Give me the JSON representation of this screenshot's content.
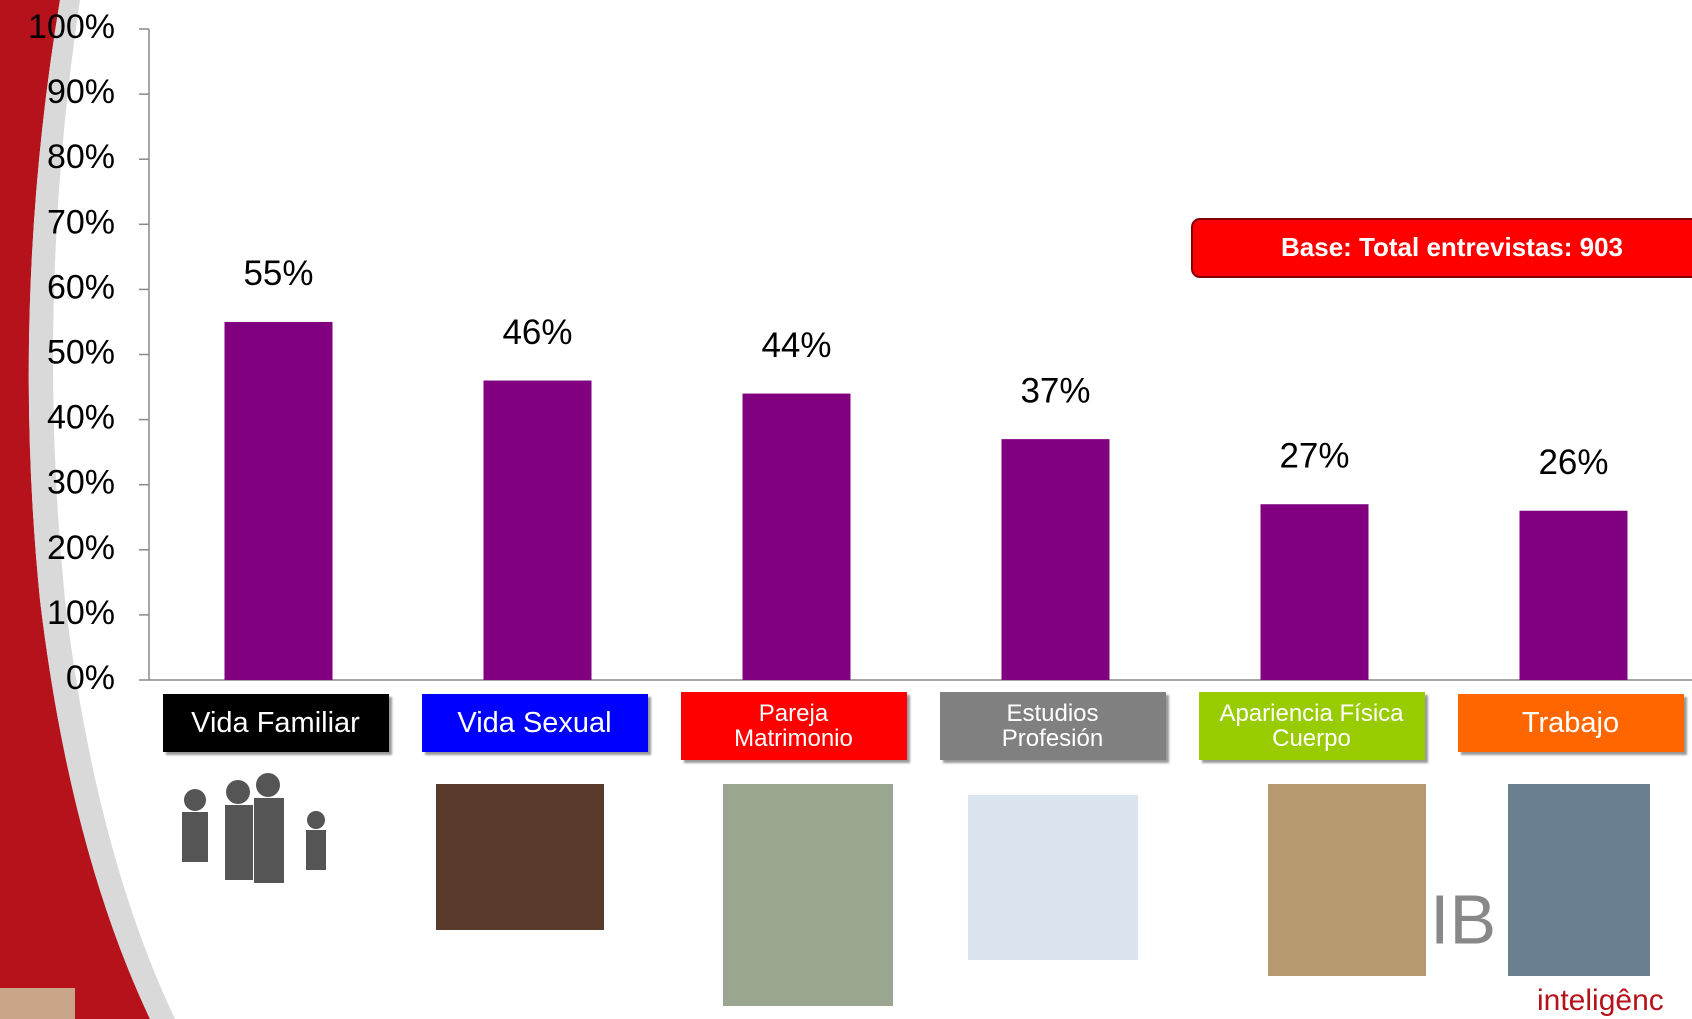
{
  "chart_data": {
    "type": "bar",
    "categories": [
      "Vida Familiar",
      "Vida Sexual",
      "Pareja\nMatrimonio",
      "Estudios\nProfesión",
      "Apariencia Física\nCuerpo",
      "Trabajo"
    ],
    "category_colors": [
      "#000000",
      "#0000ff",
      "#ff0000",
      "#808080",
      "#99cc00",
      "#ff6600"
    ],
    "values": [
      55,
      46,
      44,
      37,
      27,
      26
    ],
    "value_labels": [
      "55%",
      "46%",
      "44%",
      "37%",
      "27%",
      "26%"
    ],
    "color": "#800080",
    "ylim": [
      0,
      100
    ],
    "yticks": [
      {
        "value": 0,
        "label": "0%"
      },
      {
        "value": 10,
        "label": "10%"
      },
      {
        "value": 20,
        "label": "20%"
      },
      {
        "value": 30,
        "label": "30%"
      },
      {
        "value": 40,
        "label": "40%"
      },
      {
        "value": 50,
        "label": "50%"
      },
      {
        "value": 60,
        "label": "60%"
      },
      {
        "value": 70,
        "label": "70%"
      },
      {
        "value": 80,
        "label": "80%"
      },
      {
        "value": 90,
        "label": "90%"
      },
      {
        "value": 100,
        "label": "100%"
      }
    ],
    "annotation": "Base: Total entrevistas:  903",
    "watermark": "IB",
    "logo_text": "inteligênc"
  }
}
